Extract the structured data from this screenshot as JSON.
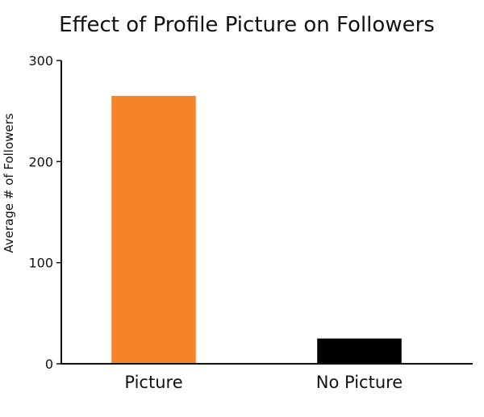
{
  "chart_data": {
    "type": "bar",
    "title": "Effect of Profile Picture on Followers",
    "xlabel": "",
    "ylabel": "Average # of Followers",
    "categories": [
      "Picture",
      "No Picture"
    ],
    "values": [
      265,
      25
    ],
    "colors": [
      "#f5832a",
      "#000000"
    ],
    "ylim": [
      0,
      300
    ],
    "yticks": [
      0,
      100,
      200,
      300
    ],
    "grid": false,
    "legend": "none"
  }
}
